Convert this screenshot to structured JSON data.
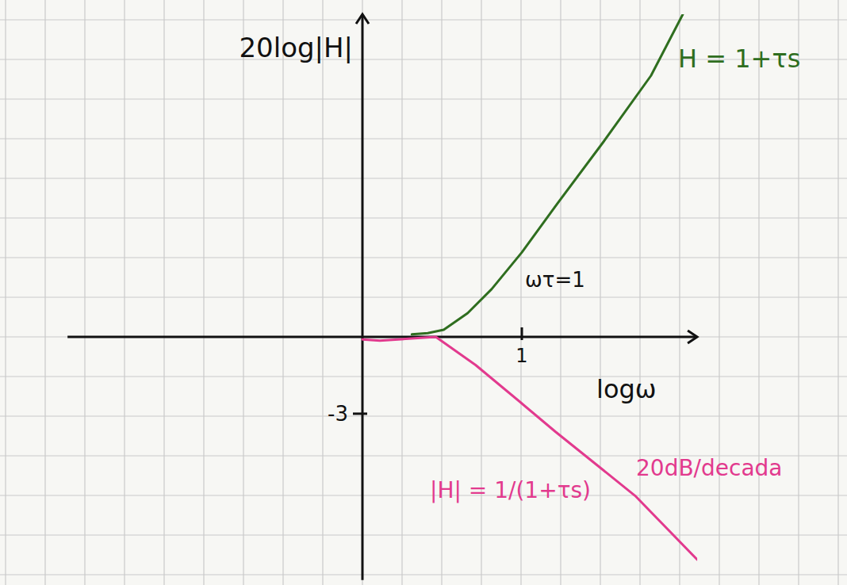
{
  "chart_data": {
    "type": "line",
    "x_label": "logω",
    "y_label": "20log|H|",
    "xlim": [
      -1.85,
      2.1
    ],
    "ylim": [
      -9.5,
      12.6
    ],
    "xticks": [
      1
    ],
    "yticks": [
      -3
    ],
    "series": [
      {
        "name": "H = 1+τs",
        "color": "#2f6e1f",
        "x": [
          0.31,
          0.41,
          0.51,
          0.66,
          0.81,
          1.0,
          1.21,
          1.51,
          1.81,
          2.01
        ],
        "values": [
          0.1,
          0.15,
          0.28,
          0.93,
          1.86,
          3.3,
          5.1,
          7.6,
          10.2,
          12.6
        ]
      },
      {
        "name": "|H| = 1/(1+τs)",
        "color": "#e23a8e",
        "x": [
          0,
          0.11,
          0.46,
          0.71,
          1.0,
          1.21,
          1.71,
          2.1
        ],
        "values": [
          -0.1,
          -0.15,
          0,
          -1.1,
          -2.6,
          -3.7,
          -6.2,
          -8.7
        ]
      }
    ],
    "annotations": [
      "ωτ=1",
      "20dB/decada"
    ]
  }
}
